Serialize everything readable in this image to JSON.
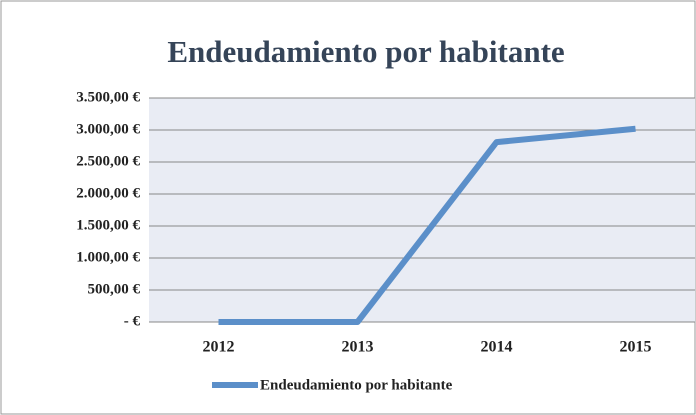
{
  "chart_data": {
    "type": "line",
    "title": "Endeudamiento por habitante",
    "categories": [
      "2012",
      "2013",
      "2014",
      "2015"
    ],
    "series": [
      {
        "name": "Endeudamiento por habitante",
        "color": "#5b8fc9",
        "values": [
          0,
          0,
          2810,
          3020
        ]
      }
    ],
    "ylim": [
      0,
      3500
    ],
    "yticks": [
      {
        "value": 0,
        "label": "-   €"
      },
      {
        "value": 500,
        "label": "500,00 €"
      },
      {
        "value": 1000,
        "label": "1.000,00 €"
      },
      {
        "value": 1500,
        "label": "1.500,00 €"
      },
      {
        "value": 2000,
        "label": "2.000,00 €"
      },
      {
        "value": 2500,
        "label": "2.500,00 €"
      },
      {
        "value": 3000,
        "label": "3.000,00 €"
      },
      {
        "value": 3500,
        "label": "3.500,00 €"
      }
    ],
    "grid": true,
    "legend": "bottom"
  }
}
